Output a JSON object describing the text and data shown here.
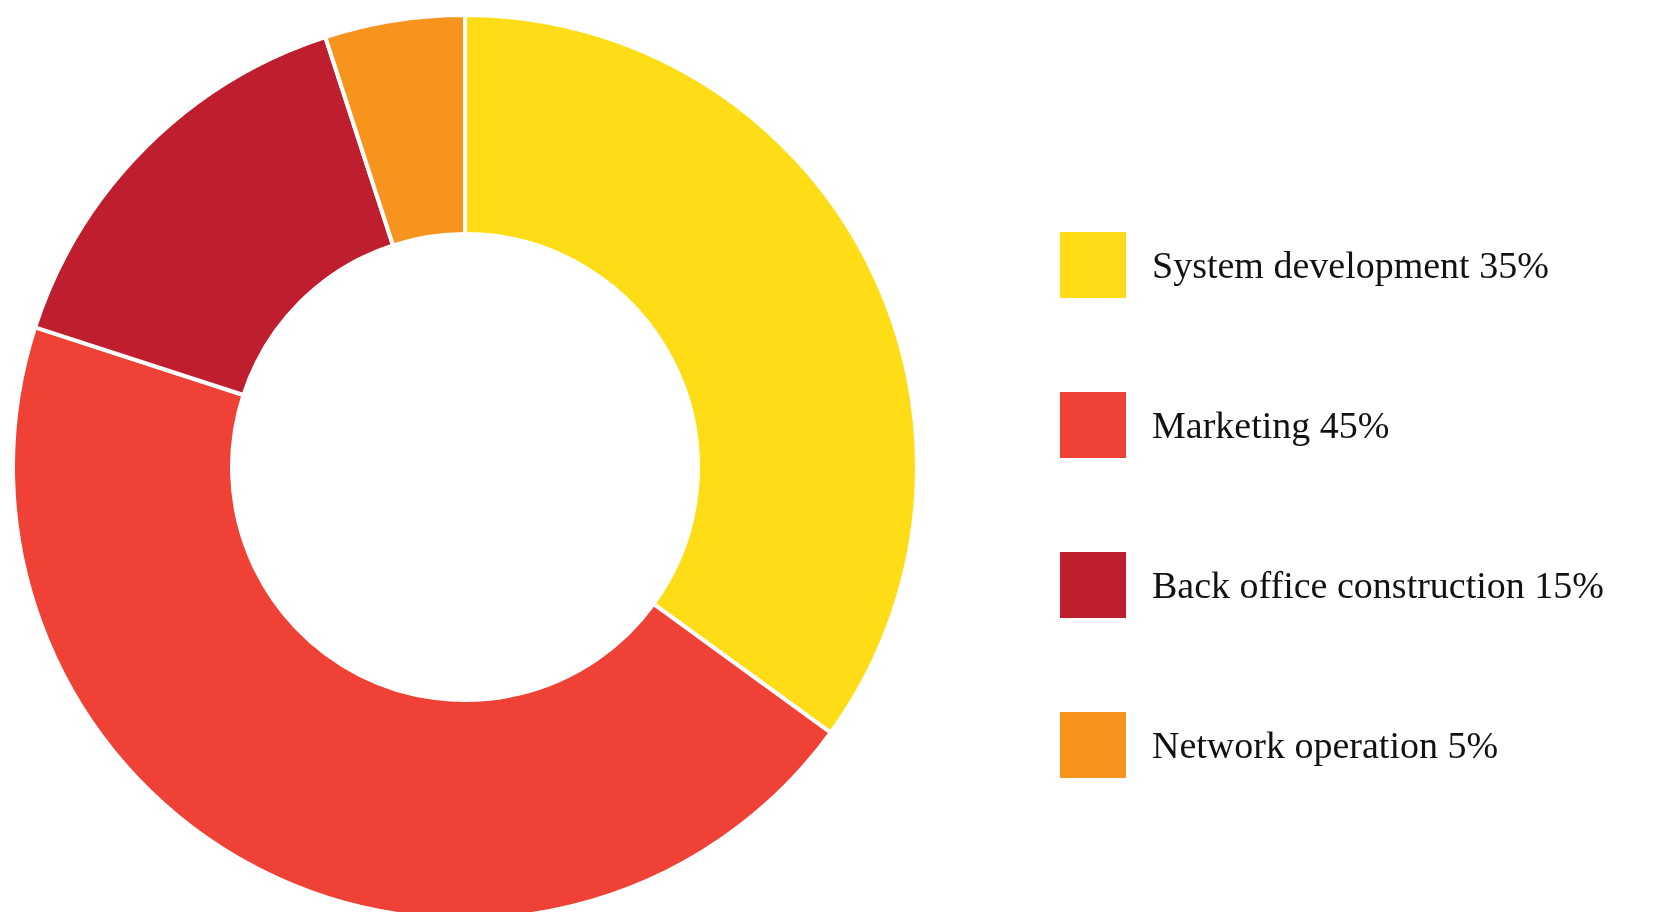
{
  "chart_data": {
    "type": "donut",
    "categories": [
      "System development",
      "Marketing",
      "Back office construction",
      "Network operation"
    ],
    "values": [
      35,
      45,
      15,
      5
    ],
    "colors": [
      "#fedd17",
      "#ef4136",
      "#be1e2d",
      "#f7941d"
    ],
    "value_labels": [
      "35%",
      "45%",
      "15%",
      "5%"
    ],
    "legend": "right"
  }
}
